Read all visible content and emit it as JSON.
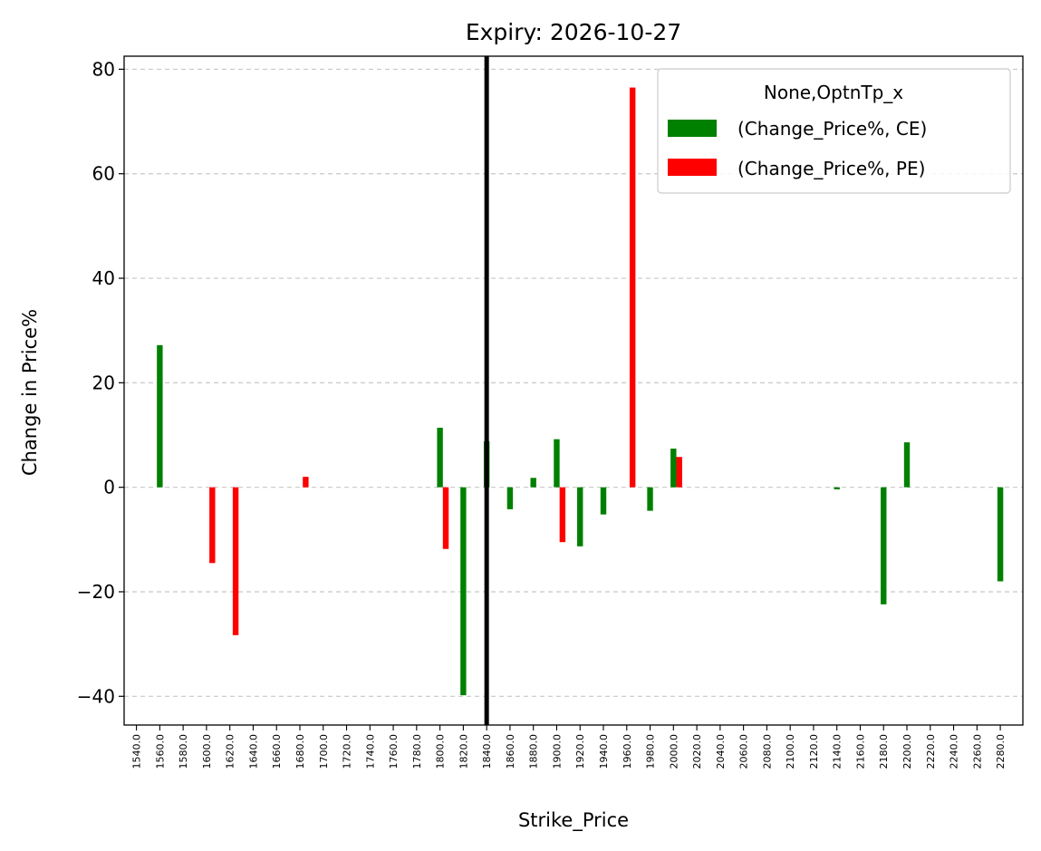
{
  "chart_data": {
    "type": "bar",
    "title": "Expiry: 2026-10-27",
    "xlabel": "Strike_Price",
    "ylabel": "Change in Price%",
    "ylim": [
      -45.5,
      82.5
    ],
    "yticks": [
      -40,
      -20,
      0,
      20,
      40,
      60,
      80
    ],
    "ytick_labels": [
      "−40",
      "−20",
      "0",
      "20",
      "40",
      "60",
      "80"
    ],
    "grid": "y-dashed",
    "categories": [
      "1540.0",
      "1560.0",
      "1580.0",
      "1600.0",
      "1620.0",
      "1640.0",
      "1660.0",
      "1680.0",
      "1700.0",
      "1720.0",
      "1740.0",
      "1760.0",
      "1780.0",
      "1800.0",
      "1820.0",
      "1840.0",
      "1860.0",
      "1880.0",
      "1900.0",
      "1920.0",
      "1940.0",
      "1960.0",
      "1980.0",
      "2000.0",
      "2020.0",
      "2040.0",
      "2060.0",
      "2080.0",
      "2100.0",
      "2120.0",
      "2140.0",
      "2160.0",
      "2180.0",
      "2200.0",
      "2220.0",
      "2240.0",
      "2260.0",
      "2280.0"
    ],
    "series": [
      {
        "name": "(Change_Price%, CE)",
        "color": "#008000",
        "values": [
          null,
          27.2,
          null,
          null,
          null,
          null,
          null,
          null,
          null,
          null,
          null,
          null,
          null,
          11.4,
          -39.8,
          8.8,
          -4.2,
          1.8,
          9.2,
          -11.3,
          -5.2,
          null,
          -4.5,
          7.4,
          null,
          null,
          null,
          null,
          null,
          null,
          -0.4,
          null,
          -22.4,
          8.6,
          null,
          null,
          null,
          -18.0
        ]
      },
      {
        "name": "(Change_Price%, PE)",
        "color": "#ff0000",
        "values": [
          null,
          null,
          null,
          -14.5,
          -28.3,
          null,
          null,
          2.0,
          null,
          null,
          null,
          null,
          null,
          -11.8,
          null,
          null,
          null,
          null,
          -10.5,
          null,
          null,
          76.5,
          null,
          5.8,
          null,
          null,
          null,
          null,
          null,
          null,
          null,
          null,
          null,
          null,
          null,
          null,
          null,
          null
        ]
      }
    ],
    "legend": {
      "title": "None,OptnTp_x",
      "placement": "top-right"
    },
    "vline": {
      "category_index": 15,
      "color": "#000000"
    }
  }
}
